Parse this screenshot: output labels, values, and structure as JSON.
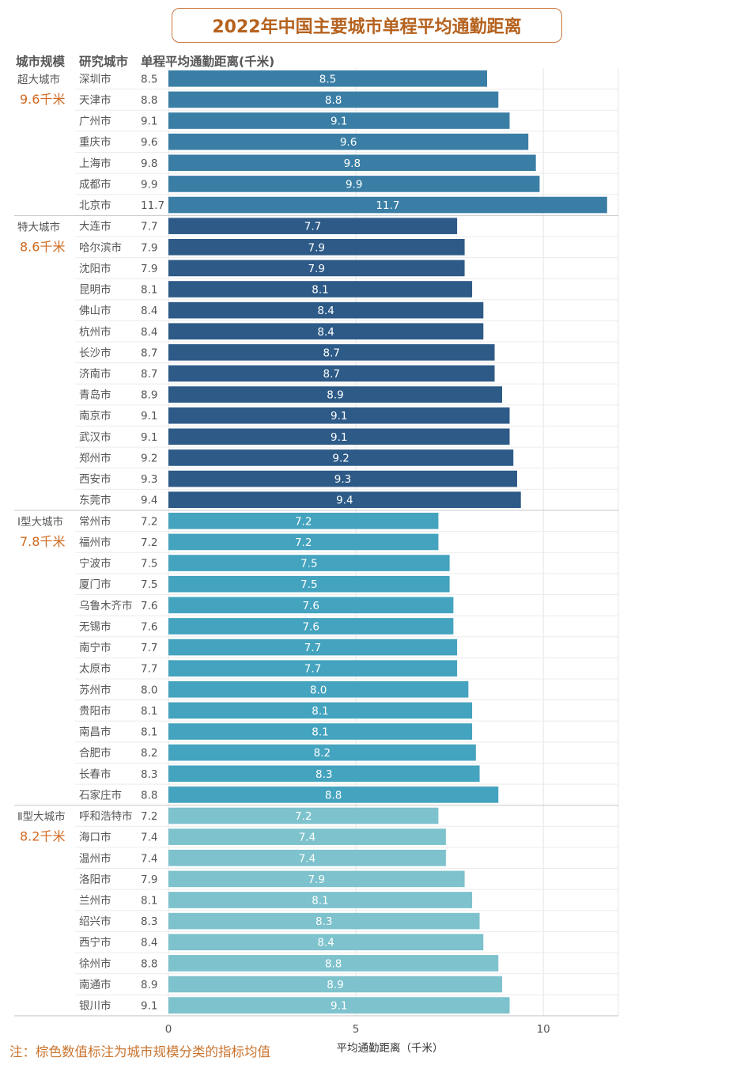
{
  "title": "2022年中国主要城市单程平均通勤距离",
  "headers": {
    "scale": "城市规模",
    "city": "研究城市",
    "value": "单程平均通勤距离(千米)"
  },
  "note": "注：棕色数值标注为城市规模分类的指标均值",
  "chart_data": {
    "type": "bar",
    "orientation": "horizontal",
    "title": "2022年中国主要城市单程平均通勤距离",
    "xlabel": "平均通勤距离（千米）",
    "xlim": [
      0,
      12
    ],
    "xticks": [
      0,
      5,
      10
    ],
    "grid": true,
    "groups": [
      {
        "name": "超大城市",
        "avg_label": "9.6千米",
        "color": "#3A7EA5",
        "categories": [
          "深圳市",
          "天津市",
          "广州市",
          "重庆市",
          "上海市",
          "成都市",
          "北京市"
        ],
        "values": [
          8.5,
          8.8,
          9.1,
          9.6,
          9.8,
          9.9,
          11.7
        ]
      },
      {
        "name": "特大城市",
        "avg_label": "8.6千米",
        "color": "#2D5A87",
        "categories": [
          "大连市",
          "哈尔滨市",
          "沈阳市",
          "昆明市",
          "佛山市",
          "杭州市",
          "长沙市",
          "济南市",
          "青岛市",
          "南京市",
          "武汉市",
          "郑州市",
          "西安市",
          "东莞市"
        ],
        "values": [
          7.7,
          7.9,
          7.9,
          8.1,
          8.4,
          8.4,
          8.7,
          8.7,
          8.9,
          9.1,
          9.1,
          9.2,
          9.3,
          9.4
        ]
      },
      {
        "name": "Ⅰ型大城市",
        "avg_label": "7.8千米",
        "color": "#44A3BE",
        "categories": [
          "常州市",
          "福州市",
          "宁波市",
          "厦门市",
          "乌鲁木齐市",
          "无锡市",
          "南宁市",
          "太原市",
          "苏州市",
          "贵阳市",
          "南昌市",
          "合肥市",
          "长春市",
          "石家庄市"
        ],
        "values": [
          7.2,
          7.2,
          7.5,
          7.5,
          7.6,
          7.6,
          7.7,
          7.7,
          8.0,
          8.1,
          8.1,
          8.2,
          8.3,
          8.8
        ]
      },
      {
        "name": "Ⅱ型大城市",
        "avg_label": "8.2千米",
        "color": "#7DC2CC",
        "categories": [
          "呼和浩特市",
          "海口市",
          "温州市",
          "洛阳市",
          "兰州市",
          "绍兴市",
          "西宁市",
          "徐州市",
          "南通市",
          "银川市"
        ],
        "values": [
          7.2,
          7.4,
          7.4,
          7.9,
          8.1,
          8.3,
          8.4,
          8.8,
          8.9,
          9.1
        ]
      }
    ]
  }
}
